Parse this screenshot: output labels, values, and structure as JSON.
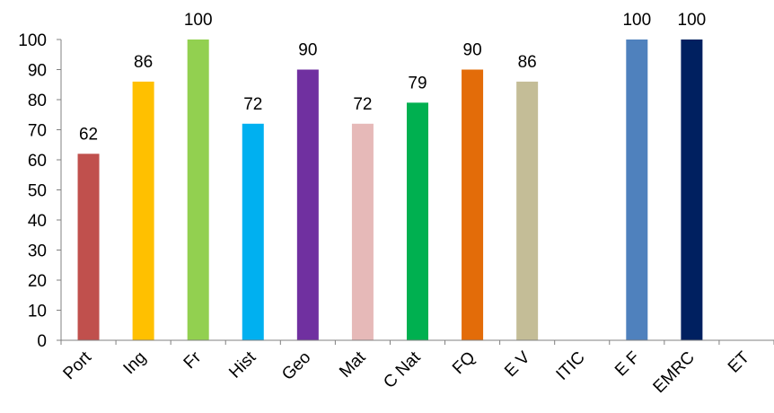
{
  "chart_data": {
    "type": "bar",
    "title": "",
    "xlabel": "",
    "ylabel": "",
    "ylim": [
      0,
      100
    ],
    "yticks": [
      0,
      10,
      20,
      30,
      40,
      50,
      60,
      70,
      80,
      90,
      100
    ],
    "grid": false,
    "legend": "none",
    "categories": [
      "Port",
      "Ing",
      "Fr",
      "Hist",
      "Geo",
      "Mat",
      "C Nat",
      "FQ",
      "E V",
      "ITIC",
      "E F",
      "EMRC",
      "ET"
    ],
    "values": [
      62,
      86,
      100,
      72,
      90,
      72,
      79,
      90,
      86,
      null,
      100,
      100,
      null
    ],
    "colors": [
      "#C0504D",
      "#FFC000",
      "#92D050",
      "#00B0F0",
      "#7030A0",
      "#E6B9B8",
      "#00B050",
      "#E36C09",
      "#C4BD97",
      "#4F81BD",
      "#4F81BD",
      "#002060",
      "#002060"
    ],
    "data_labels": [
      "62",
      "86",
      "100",
      "72",
      "90",
      "72",
      "79",
      "90",
      "86",
      "",
      "100",
      "100",
      ""
    ]
  }
}
